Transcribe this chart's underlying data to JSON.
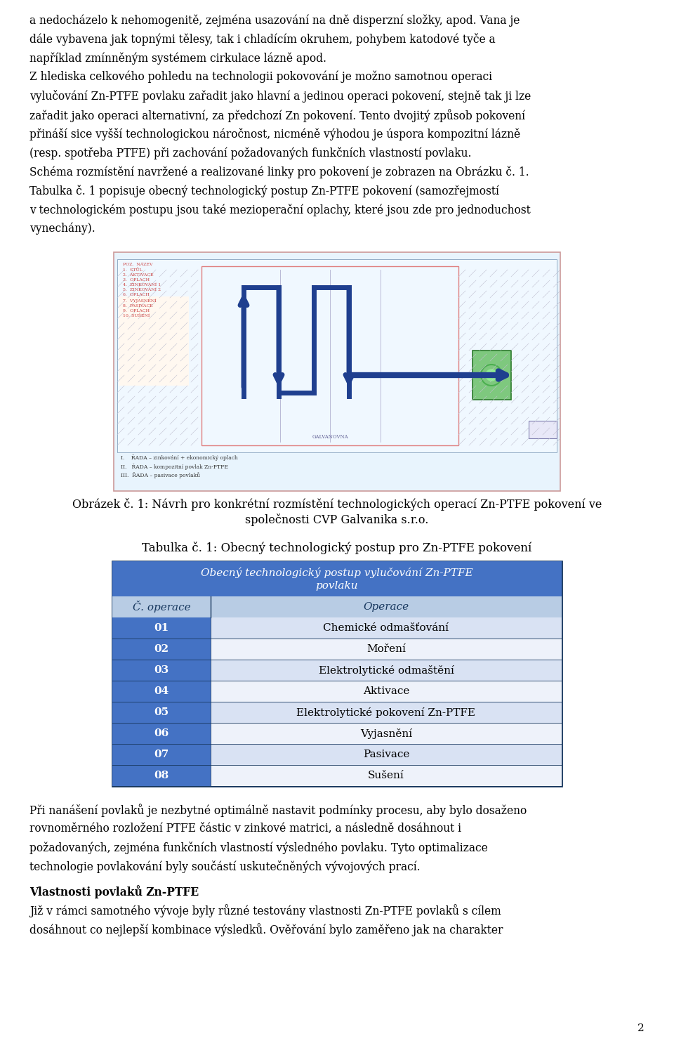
{
  "page_text_top": [
    "a nedocházelo k nehomogenitě, zejména usazování na dně disperzní složky, apod. Vana je",
    "dále vybavena jak topnými tělesy, tak i chladícím okruhem, pohybem katodové tyče a",
    "například zmínněným systémem cirkulace lázně apod."
  ],
  "paragraph1": [
    "Z hlediska celkového pohledu na technologii pokovování je možno samotnou operaci",
    "vylučování Zn-PTFE povlaku zařadit jako hlavní a jedinou operaci pokovení, stejně tak ji lze",
    "zařadit jako operaci alternativní, za předchozí Zn pokovení. Tento dvojitý způsob pokovení",
    "přináší sice vyšší technologickou náročnost, nicméně výhodou je úspora kompozitní lázně",
    "(resp. spotřeba PTFE) při zachování požadovaných funkčních vlastností povlaku."
  ],
  "paragraph2_line1": "Schéma rozmístění navržené a realizované linky pro pokovení je zobrazen na Obrázku č. 1.",
  "paragraph3_line1": "Tabulka č. 1 popisuje obecný technologický postup Zn-PTFE pokovení (samozřejmostí",
  "paragraph3_line2": "v technologickém postupu jsou také mezioperační oplachy, které jsou zde pro jednoduchost",
  "paragraph3_line3": "vynechány).",
  "fig_caption_line1": "Obrázek č. 1: Návrh pro konkrétní rozmístění technologických operací Zn-PTFE pokovení ve",
  "fig_caption_line2": "společnosti CVP Galvanika s.r.o.",
  "table_caption": "Tabulka č. 1: Obecný technologický postup pro Zn-PTFE pokovení",
  "table_header": "Obecný technologický postup vylučování Zn-PTFE\npovlaku",
  "table_col1_header": "Č. operace",
  "table_col2_header": "Operace",
  "table_rows": [
    [
      "01",
      "Chemické odmašťování"
    ],
    [
      "02",
      "Moření"
    ],
    [
      "03",
      "Elektrolytické odmaštění"
    ],
    [
      "04",
      "Aktivace"
    ],
    [
      "05",
      "Elektrolytické pokovení Zn-PTFE"
    ],
    [
      "06",
      "Vyjasnění"
    ],
    [
      "07",
      "Pasivace"
    ],
    [
      "08",
      "Sušení"
    ]
  ],
  "para_after_table_1": "Při nanášení povlaků je nezbytné optimálně nastavit podmínky procesu, aby bylo dosaženo",
  "para_after_table_2": "rovnoměrného rozložení PTFE částic v zinkové matrici, a následně dosáhnout i",
  "para_after_table_3": "požadovaných, zejména funkčních vlastností výsledného povlaku. Tyto optimalizace",
  "para_after_table_4": "technologie povlakování byly součástí uskutečněných vývojových prací.",
  "section_heading": "Vlastnosti povlaků Zn-PTFE",
  "para_last_1": "Již v rámci samotného vývoje byly různé testovány vlastnosti Zn-PTFE povlaků s cílem",
  "para_last_2": "dosáhnout co nejlepší kombinace výsledků. Ověřování bylo zaměřeno jak na charakter",
  "page_number": "2",
  "header_bg_color": "#4472C4",
  "header_text_color": "#FFFFFF",
  "subheader_bg_color": "#B8CCE4",
  "subheader_text_color": "#17375E",
  "row_odd_bg": "#D9E2F3",
  "row_even_bg": "#EEF2FA",
  "table_border_color": "#17375E",
  "cell_num_bg": "#4472C4",
  "cell_num_text": "#FFFFFF",
  "body_text_color": "#000000",
  "bg_color": "#FFFFFF"
}
